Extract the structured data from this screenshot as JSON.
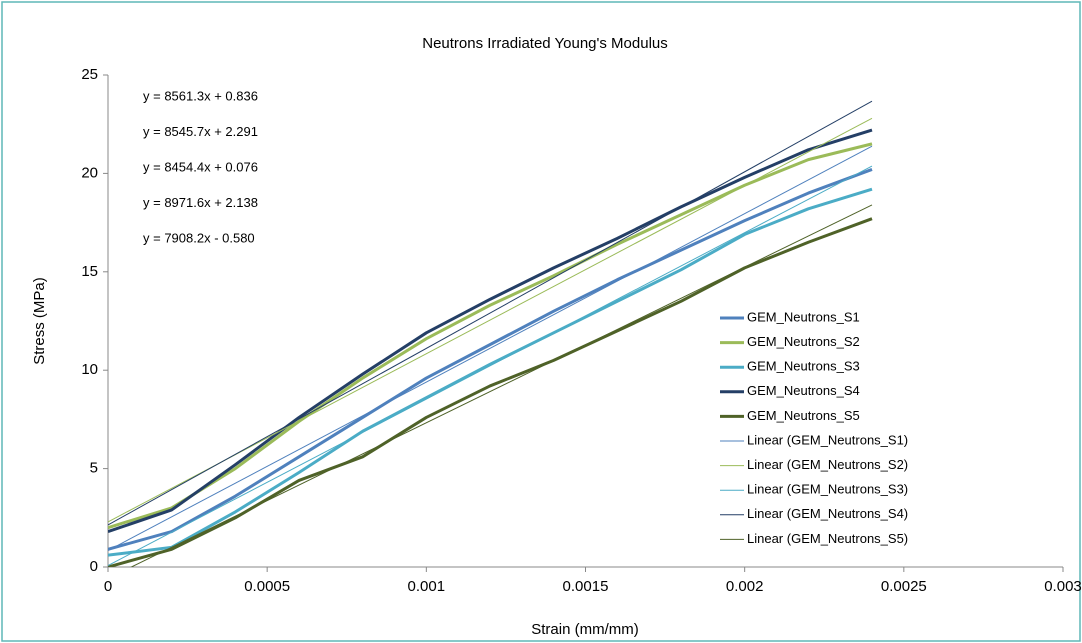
{
  "chart_data": {
    "type": "line",
    "title": "Neutrons Irradiated Young's Modulus",
    "x_label": "Strain (mm/mm)",
    "y_label": "Stress (MPa)",
    "xlim": [
      0,
      0.003
    ],
    "xticks": [
      0,
      0.0005,
      0.001,
      0.0015,
      0.002,
      0.0025,
      0.003
    ],
    "ylim": [
      0,
      25
    ],
    "yticks": [
      0,
      5,
      10,
      15,
      20,
      25
    ],
    "grid": false,
    "legend": "right",
    "annotations": [
      "y = 8561.3x + 0.836",
      "y = 8545.7x + 2.291",
      "y = 8454.4x + 0.076",
      "y = 8971.6x + 2.138",
      "y = 7908.2x - 0.580"
    ],
    "series": [
      {
        "name": "GEM_Neutrons_S1",
        "color": "#4f81bd",
        "width": 3,
        "x": [
          0,
          0.0002,
          0.0004,
          0.0006,
          0.0008,
          0.001,
          0.0012,
          0.0014,
          0.0016,
          0.0018,
          0.002,
          0.0022,
          0.0024
        ],
        "values": [
          0.9,
          1.8,
          3.6,
          5.6,
          7.6,
          9.6,
          11.3,
          13.0,
          14.6,
          16.1,
          17.6,
          19.0,
          20.2
        ]
      },
      {
        "name": "GEM_Neutrons_S2",
        "color": "#9bbb59",
        "width": 3,
        "x": [
          0,
          0.0002,
          0.0004,
          0.0006,
          0.0008,
          0.001,
          0.0012,
          0.0014,
          0.0016,
          0.0018,
          0.002,
          0.0022,
          0.0024
        ],
        "values": [
          2.0,
          3.0,
          5.0,
          7.4,
          9.6,
          11.6,
          13.3,
          14.8,
          16.4,
          17.9,
          19.4,
          20.7,
          21.5
        ]
      },
      {
        "name": "GEM_Neutrons_S3",
        "color": "#4bacc6",
        "width": 3,
        "x": [
          0,
          0.0002,
          0.0004,
          0.0006,
          0.0008,
          0.001,
          0.0012,
          0.0014,
          0.0016,
          0.0018,
          0.002,
          0.0022,
          0.0024
        ],
        "values": [
          0.6,
          1.0,
          2.8,
          4.8,
          6.9,
          8.6,
          10.3,
          11.9,
          13.5,
          15.1,
          16.9,
          18.2,
          19.2
        ]
      },
      {
        "name": "GEM_Neutrons_S4",
        "color": "#243f66",
        "width": 3,
        "x": [
          0,
          0.0002,
          0.0004,
          0.0006,
          0.0008,
          0.001,
          0.0012,
          0.0014,
          0.0016,
          0.0018,
          0.002,
          0.0022,
          0.0024
        ],
        "values": [
          1.8,
          2.9,
          5.2,
          7.6,
          9.8,
          11.9,
          13.6,
          15.2,
          16.7,
          18.3,
          19.8,
          21.2,
          22.2
        ]
      },
      {
        "name": "GEM_Neutrons_S5",
        "color": "#4f6228",
        "width": 3,
        "x": [
          0,
          0.0002,
          0.0004,
          0.0006,
          0.0008,
          0.001,
          0.0012,
          0.0014,
          0.0016,
          0.0018,
          0.002,
          0.0022,
          0.0024
        ],
        "values": [
          0,
          0.9,
          2.5,
          4.4,
          5.6,
          7.6,
          9.2,
          10.5,
          12.0,
          13.5,
          15.2,
          16.5,
          17.7
        ]
      },
      {
        "name": "Linear (GEM_Neutrons_S1)",
        "color": "#4f81bd",
        "width": 1,
        "x": [
          0,
          0.0024
        ],
        "values": [
          0.836,
          21.38
        ]
      },
      {
        "name": "Linear (GEM_Neutrons_S2)",
        "color": "#9bbb59",
        "width": 1,
        "x": [
          0,
          0.0024
        ],
        "values": [
          2.291,
          22.8
        ]
      },
      {
        "name": "Linear (GEM_Neutrons_S3)",
        "color": "#4bacc6",
        "width": 1,
        "x": [
          0,
          0.0024
        ],
        "values": [
          0.076,
          20.37
        ]
      },
      {
        "name": "Linear (GEM_Neutrons_S4)",
        "color": "#243f66",
        "width": 1,
        "x": [
          0,
          0.0024
        ],
        "values": [
          2.138,
          23.67
        ]
      },
      {
        "name": "Linear (GEM_Neutrons_S5)",
        "color": "#4f6228",
        "width": 1,
        "x": [
          0,
          0.0024
        ],
        "values": [
          -0.58,
          18.4
        ]
      }
    ]
  }
}
